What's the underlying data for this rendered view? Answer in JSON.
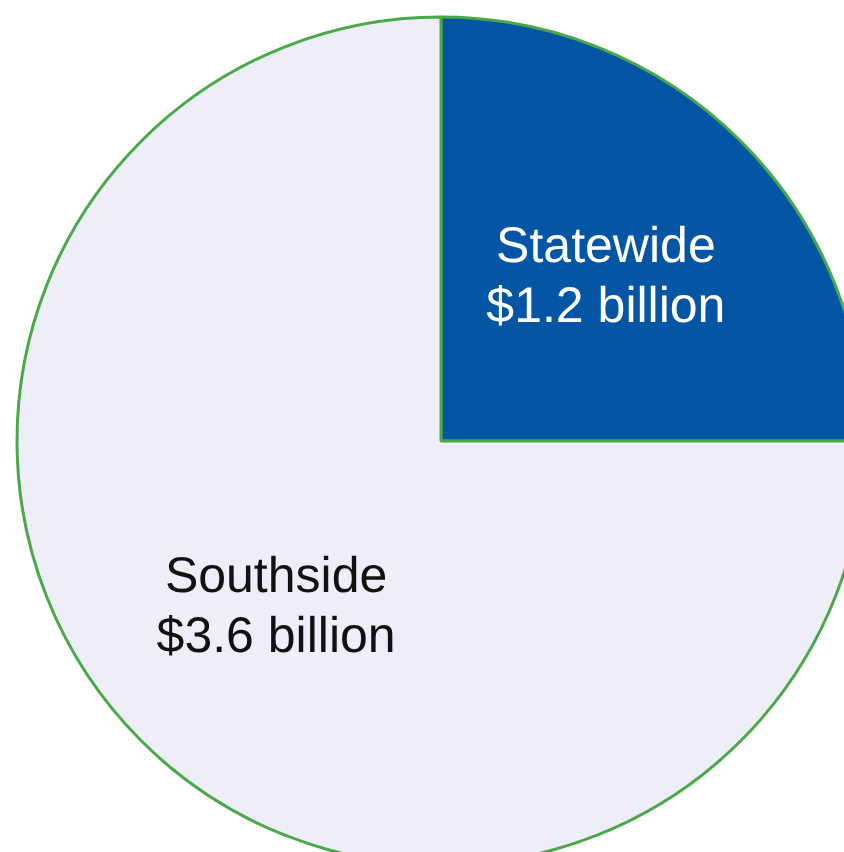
{
  "chart_data": {
    "type": "pie",
    "categories": [
      "Statewide",
      "Southside"
    ],
    "values": [
      1.2,
      3.6
    ],
    "value_labels": [
      "$1.2 billion",
      "$3.6 billion"
    ],
    "colors": [
      "#0455a4",
      "#eeeef8"
    ]
  }
}
